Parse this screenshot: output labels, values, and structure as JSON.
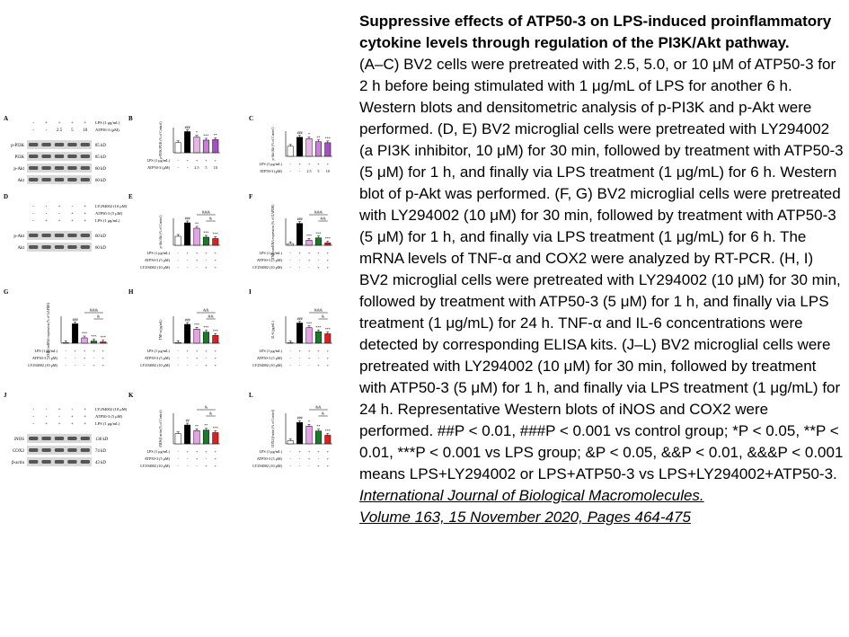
{
  "caption": {
    "title": "Suppressive effects of ATP50-3 on LPS-induced proinflammatory cytokine levels through regulation of the PI3K/Akt pathway.",
    "body": "(A–C) BV2 cells were pretreated with 2.5, 5.0, or 10 μM of ATP50-3 for 2 h before being stimulated with 1 μg/mL of LPS for another 6 h. Western blots and densitometric analysis of p-PI3K and p-Akt were performed. (D, E) BV2 microglial cells were pretreated with LY294002 (a PI3K inhibitor, 10 μM) for 30 min, followed by treatment with ATP50-3 (5 μM) for 1 h, and finally via LPS treatment (1 μg/mL) for 6 h. Western blot of p-Akt was performed. (F, G) BV2 microglial cells were pretreated with LY294002 (10 μM) for 30 min, followed by treatment with ATP50-3 (5 μM) for 1 h, and finally via LPS treatment (1 μg/mL) for 6 h. The mRNA levels of TNF-α and COX2 were analyzed by RT-PCR. (H, I) BV2 microglial cells were pretreated with LY294002 (10 μM) for 30 min, followed by treatment with ATP50-3 (5 μM) for 1 h, and finally via LPS treatment (1 μg/mL) for 24 h. TNF-α and IL-6 concentrations were detected by corresponding ELISA kits. (J–L) BV2 microglial cells were pretreated with LY294002 (10 μM) for 30 min, followed by treatment with ATP50-3 (5 μM) for 1 h, and finally via LPS treatment (1 μg/mL) for 24 h. Representative Western blots of iNOS and COX2 were performed. ##P < 0.01, ###P < 0.001 vs control group; *P < 0.05, **P < 0.01, ***P < 0.001 vs LPS group; &P < 0.05, &&P < 0.01, &&&P < 0.001 means LPS+LY294002 or LPS+ATP50-3 vs LPS+LY294002+ATP50-3.",
    "citation_line1": "International Journal of Biological Macromolecules.",
    "citation_line2": "Volume 163, 15 November 2020, Pages 464-475"
  },
  "figure": {
    "panel_labels": [
      "A",
      "B",
      "C",
      "D",
      "E",
      "F",
      "G",
      "H",
      "I",
      "J",
      "K",
      "L"
    ],
    "blot_a": {
      "treatments": [
        {
          "label": "LPS (1 μg/mL)",
          "signs": [
            "-",
            "+",
            "+",
            "+",
            "+"
          ]
        },
        {
          "label": "ATP50-3 (μM)",
          "signs": [
            "-",
            "-",
            "2.5",
            "5",
            "10"
          ]
        }
      ],
      "bands": [
        {
          "name": "p-PI3K",
          "size": "85 kD"
        },
        {
          "name": "PI3K",
          "size": "85 kD"
        },
        {
          "name": "p-Akt",
          "size": "60 kD"
        },
        {
          "name": "Akt",
          "size": "60 kD"
        }
      ]
    },
    "blot_d": {
      "treatments": [
        {
          "label": "LY294002 (10 μM)",
          "signs": [
            "-",
            "-",
            "+",
            "-",
            "+"
          ]
        },
        {
          "label": "ATP50-3 (5 μM)",
          "signs": [
            "-",
            "-",
            "-",
            "+",
            "+"
          ]
        },
        {
          "label": "LPS (1 μg/mL)",
          "signs": [
            "-",
            "+",
            "+",
            "+",
            "+"
          ]
        }
      ],
      "bands": [
        {
          "name": "p-Akt",
          "size": "60 kD"
        },
        {
          "name": "Akt",
          "size": "60 kD"
        }
      ]
    },
    "blot_j": {
      "treatments": [
        {
          "label": "LY294002 (10 μM)",
          "signs": [
            "-",
            "-",
            "+",
            "-",
            "+"
          ]
        },
        {
          "label": "ATP50-3 (5 μM)",
          "signs": [
            "-",
            "-",
            "-",
            "+",
            "+"
          ]
        },
        {
          "label": "LPS (1 μg/mL)",
          "signs": [
            "-",
            "+",
            "+",
            "+",
            "+"
          ]
        }
      ],
      "bands": [
        {
          "name": "iNOS",
          "size": "130 kD"
        },
        {
          "name": "COX2",
          "size": "74 kD"
        },
        {
          "name": "β-actin",
          "size": "43 kD"
        }
      ]
    }
  },
  "chart_data": [
    {
      "panel": "B",
      "type": "bar",
      "ylabel": "p-PI3K/PI3K (% of Control)",
      "ylim": [
        0,
        2.5
      ],
      "values": [
        1.0,
        2.1,
        1.55,
        1.25,
        1.3
      ],
      "colors": [
        "#ffffff",
        "#000000",
        "#e8b4e8",
        "#c77fd8",
        "#a64fc4"
      ],
      "sig": [
        "",
        "###",
        "*",
        "***",
        "**"
      ],
      "rows": [
        {
          "label": "LPS (1 μg/mL)",
          "signs": [
            "-",
            "+",
            "+",
            "+",
            "+"
          ]
        },
        {
          "label": "ATP50-3 (μM)",
          "signs": [
            "-",
            "-",
            "2.5",
            "5",
            "10"
          ]
        }
      ],
      "brackets": []
    },
    {
      "panel": "C",
      "type": "bar",
      "ylabel": "p-Akt/Akt (% of Control)",
      "ylim": [
        0,
        2.5
      ],
      "values": [
        1.0,
        1.9,
        1.75,
        1.45,
        1.35
      ],
      "colors": [
        "#ffffff",
        "#000000",
        "#e8b4e8",
        "#c77fd8",
        "#a64fc4"
      ],
      "sig": [
        "",
        "###",
        "*",
        "**",
        "***"
      ],
      "rows": [
        {
          "label": "LPS (1 μg/mL)",
          "signs": [
            "-",
            "+",
            "+",
            "+",
            "+"
          ]
        },
        {
          "label": "ATP50-3 (μM)",
          "signs": [
            "-",
            "-",
            "2.5",
            "5",
            "10"
          ]
        }
      ],
      "brackets": []
    },
    {
      "panel": "E",
      "type": "bar",
      "ylabel": "p-Akt/Akt (% of Control)",
      "ylim": [
        0,
        3
      ],
      "values": [
        1.0,
        2.5,
        1.9,
        0.9,
        0.75
      ],
      "colors": [
        "#ffffff",
        "#000000",
        "#e8a0e8",
        "#1a7a2a",
        "#e02020"
      ],
      "sig": [
        "",
        "###",
        "**",
        "***",
        "***"
      ],
      "rows": [
        {
          "label": "LPS (1 μg/mL)",
          "signs": [
            "-",
            "+",
            "+",
            "+",
            "+"
          ]
        },
        {
          "label": "ATP50-3 (5 μM)",
          "signs": [
            "-",
            "-",
            "+",
            "-",
            "+"
          ]
        },
        {
          "label": "LY294002 (10 μM)",
          "signs": [
            "-",
            "-",
            "-",
            "+",
            "+"
          ]
        }
      ],
      "brackets": [
        {
          "from": 2,
          "to": 4,
          "text": "&&&",
          "level": 0
        },
        {
          "from": 3,
          "to": 4,
          "text": "&",
          "level": 1
        }
      ]
    },
    {
      "panel": "F",
      "type": "bar",
      "ylabel": "TNF-α mRNA expression (% of GAPDH)",
      "ylim": [
        0,
        0.8
      ],
      "values": [
        0.05,
        0.65,
        0.15,
        0.22,
        0.07
      ],
      "colors": [
        "#ffffff",
        "#000000",
        "#e8a0e8",
        "#1a7a2a",
        "#e02020"
      ],
      "sig": [
        "",
        "###",
        "***",
        "***",
        "***"
      ],
      "rows": [
        {
          "label": "LPS (1 μg/mL)",
          "signs": [
            "-",
            "+",
            "+",
            "+",
            "+"
          ]
        },
        {
          "label": "ATP50-3 (5 μM)",
          "signs": [
            "-",
            "-",
            "+",
            "-",
            "+"
          ]
        },
        {
          "label": "LY294002 (10 μM)",
          "signs": [
            "-",
            "-",
            "-",
            "+",
            "+"
          ]
        }
      ],
      "brackets": [
        {
          "from": 2,
          "to": 4,
          "text": "&&&",
          "level": 0
        },
        {
          "from": 3,
          "to": 4,
          "text": "&&",
          "level": 1
        }
      ]
    },
    {
      "panel": "G",
      "type": "bar",
      "ylabel": "COX2 mRNA expression (% of GAPDH)",
      "ylim": [
        0,
        0.025
      ],
      "values": [
        0.0005,
        0.018,
        0.005,
        0.002,
        0.0012
      ],
      "colors": [
        "#ffffff",
        "#000000",
        "#e8a0e8",
        "#1a7a2a",
        "#e02020"
      ],
      "sig": [
        "",
        "###",
        "***",
        "***",
        "***"
      ],
      "rows": [
        {
          "label": "LPS (1 μg/mL)",
          "signs": [
            "-",
            "+",
            "+",
            "+",
            "+"
          ]
        },
        {
          "label": "ATP50-3 (5 μM)",
          "signs": [
            "-",
            "-",
            "+",
            "-",
            "+"
          ]
        },
        {
          "label": "LY294002 (10 μM)",
          "signs": [
            "-",
            "-",
            "-",
            "+",
            "+"
          ]
        }
      ],
      "brackets": [
        {
          "from": 2,
          "to": 4,
          "text": "&&&",
          "level": 0
        },
        {
          "from": 3,
          "to": 4,
          "text": "&",
          "level": 1
        }
      ]
    },
    {
      "panel": "H",
      "type": "bar",
      "ylabel": "TNF-α (pg/mL)",
      "ylim": [
        0,
        800
      ],
      "values": [
        20,
        560,
        420,
        330,
        230
      ],
      "colors": [
        "#ffffff",
        "#000000",
        "#e8a0e8",
        "#1a7a2a",
        "#e02020"
      ],
      "sig": [
        "",
        "###",
        "***",
        "***",
        "***"
      ],
      "rows": [
        {
          "label": "LPS (1 μg/mL)",
          "signs": [
            "-",
            "+",
            "+",
            "+",
            "+"
          ]
        },
        {
          "label": "ATP50-3 (5 μM)",
          "signs": [
            "-",
            "-",
            "+",
            "-",
            "+"
          ]
        },
        {
          "label": "LY294002 (10 μM)",
          "signs": [
            "-",
            "-",
            "-",
            "+",
            "+"
          ]
        }
      ],
      "brackets": [
        {
          "from": 2,
          "to": 4,
          "text": "&&",
          "level": 0
        },
        {
          "from": 3,
          "to": 4,
          "text": "&&",
          "level": 1
        }
      ]
    },
    {
      "panel": "I",
      "type": "bar",
      "ylabel": "IL-6 (pg/mL)",
      "ylim": [
        0,
        2000
      ],
      "values": [
        30,
        1500,
        1150,
        850,
        700
      ],
      "colors": [
        "#ffffff",
        "#000000",
        "#e8a0e8",
        "#1a7a2a",
        "#e02020"
      ],
      "sig": [
        "",
        "###",
        "***",
        "***",
        "***"
      ],
      "rows": [
        {
          "label": "LPS (1 μg/mL)",
          "signs": [
            "-",
            "+",
            "+",
            "+",
            "+"
          ]
        },
        {
          "label": "ATP50-3 (5 μM)",
          "signs": [
            "-",
            "-",
            "+",
            "-",
            "+"
          ]
        },
        {
          "label": "LY294002 (10 μM)",
          "signs": [
            "-",
            "-",
            "-",
            "+",
            "+"
          ]
        }
      ],
      "brackets": [
        {
          "from": 2,
          "to": 4,
          "text": "&&&",
          "level": 0
        },
        {
          "from": 3,
          "to": 4,
          "text": "&",
          "level": 1
        }
      ]
    },
    {
      "panel": "K",
      "type": "bar",
      "ylabel": "iNOS/β-actin (% of Control)",
      "ylim": [
        0,
        3
      ],
      "values": [
        1.0,
        1.85,
        1.3,
        1.35,
        1.1
      ],
      "colors": [
        "#ffffff",
        "#000000",
        "#e8a0e8",
        "#1a7a2a",
        "#e02020"
      ],
      "sig": [
        "",
        "##",
        "**",
        "**",
        "***"
      ],
      "rows": [
        {
          "label": "LPS (1 μg/mL)",
          "signs": [
            "-",
            "+",
            "+",
            "+",
            "+"
          ]
        },
        {
          "label": "ATP50-3 (5 μM)",
          "signs": [
            "-",
            "-",
            "+",
            "-",
            "+"
          ]
        },
        {
          "label": "LY294002 (10 μM)",
          "signs": [
            "-",
            "-",
            "-",
            "+",
            "+"
          ]
        }
      ],
      "brackets": [
        {
          "from": 2,
          "to": 4,
          "text": "&",
          "level": 0
        },
        {
          "from": 3,
          "to": 4,
          "text": "&",
          "level": 1
        }
      ]
    },
    {
      "panel": "L",
      "type": "bar",
      "ylabel": "COX2/β-actin (% of Control)",
      "ylim": [
        0,
        2.5
      ],
      "values": [
        0.25,
        1.75,
        1.45,
        1.05,
        0.7
      ],
      "colors": [
        "#ffffff",
        "#000000",
        "#e8a0e8",
        "#1a7a2a",
        "#e02020"
      ],
      "sig": [
        "",
        "###",
        "*",
        "**",
        "***"
      ],
      "rows": [
        {
          "label": "LPS (1 μg/mL)",
          "signs": [
            "-",
            "+",
            "+",
            "+",
            "+"
          ]
        },
        {
          "label": "ATP50-3 (5 μM)",
          "signs": [
            "-",
            "-",
            "+",
            "-",
            "+"
          ]
        },
        {
          "label": "LY294002 (10 μM)",
          "signs": [
            "-",
            "-",
            "-",
            "+",
            "+"
          ]
        }
      ],
      "brackets": [
        {
          "from": 2,
          "to": 4,
          "text": "&&",
          "level": 0
        },
        {
          "from": 3,
          "to": 4,
          "text": "&",
          "level": 1
        }
      ]
    }
  ]
}
